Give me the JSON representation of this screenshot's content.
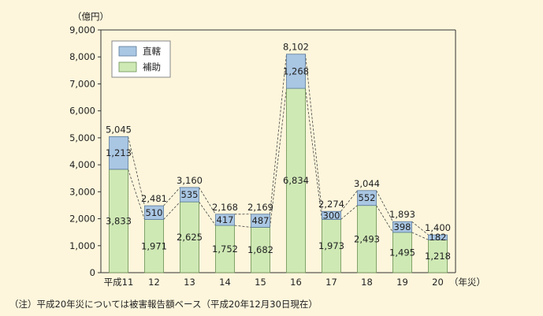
{
  "chart_data": {
    "type": "bar",
    "stacked": true,
    "y_unit": "（億円）",
    "x_unit": "（年災）",
    "categories": [
      "平成11",
      "12",
      "13",
      "14",
      "15",
      "16",
      "17",
      "18",
      "19",
      "20"
    ],
    "series": [
      {
        "name": "補助",
        "color": "#cfe9b5",
        "values": [
          3833,
          1971,
          2625,
          1752,
          1682,
          6834,
          1973,
          2493,
          1495,
          1218
        ]
      },
      {
        "name": "直轄",
        "color": "#a9c6e3",
        "values": [
          1213,
          510,
          535,
          417,
          487,
          1268,
          300,
          552,
          398,
          182
        ]
      }
    ],
    "totals": [
      5045,
      2481,
      3160,
      2168,
      2169,
      8102,
      2274,
      3044,
      1893,
      1400
    ],
    "value_labels": {
      "補助": [
        "3,833",
        "1,971",
        "2,625",
        "1,752",
        "1,682",
        "6,834",
        "1,973",
        "2,493",
        "1,495",
        "1,218"
      ],
      "直轄": [
        "1,213",
        "510",
        "535",
        "417",
        "487",
        "1,268",
        "300",
        "552",
        "398",
        "182"
      ],
      "totals": [
        "5,045",
        "2,481",
        "3,160",
        "2,168",
        "2,169",
        "8,102",
        "2,274",
        "3,044",
        "1,893",
        "1,400"
      ]
    },
    "ylim": [
      0,
      9000
    ],
    "yticks": [
      0,
      1000,
      2000,
      3000,
      4000,
      5000,
      6000,
      7000,
      8000,
      9000
    ],
    "ytick_labels": [
      "0",
      "1,000",
      "2,000",
      "3,000",
      "4,000",
      "5,000",
      "6,000",
      "7,000",
      "8,000",
      "9,000"
    ],
    "legend": {
      "items": [
        "直轄",
        "補助"
      ],
      "position": "top-left"
    },
    "connector_lines": "dashed",
    "grid": false
  },
  "note": "（注）平成20年災については被害報告額ベース（平成20年12月30日現在）"
}
